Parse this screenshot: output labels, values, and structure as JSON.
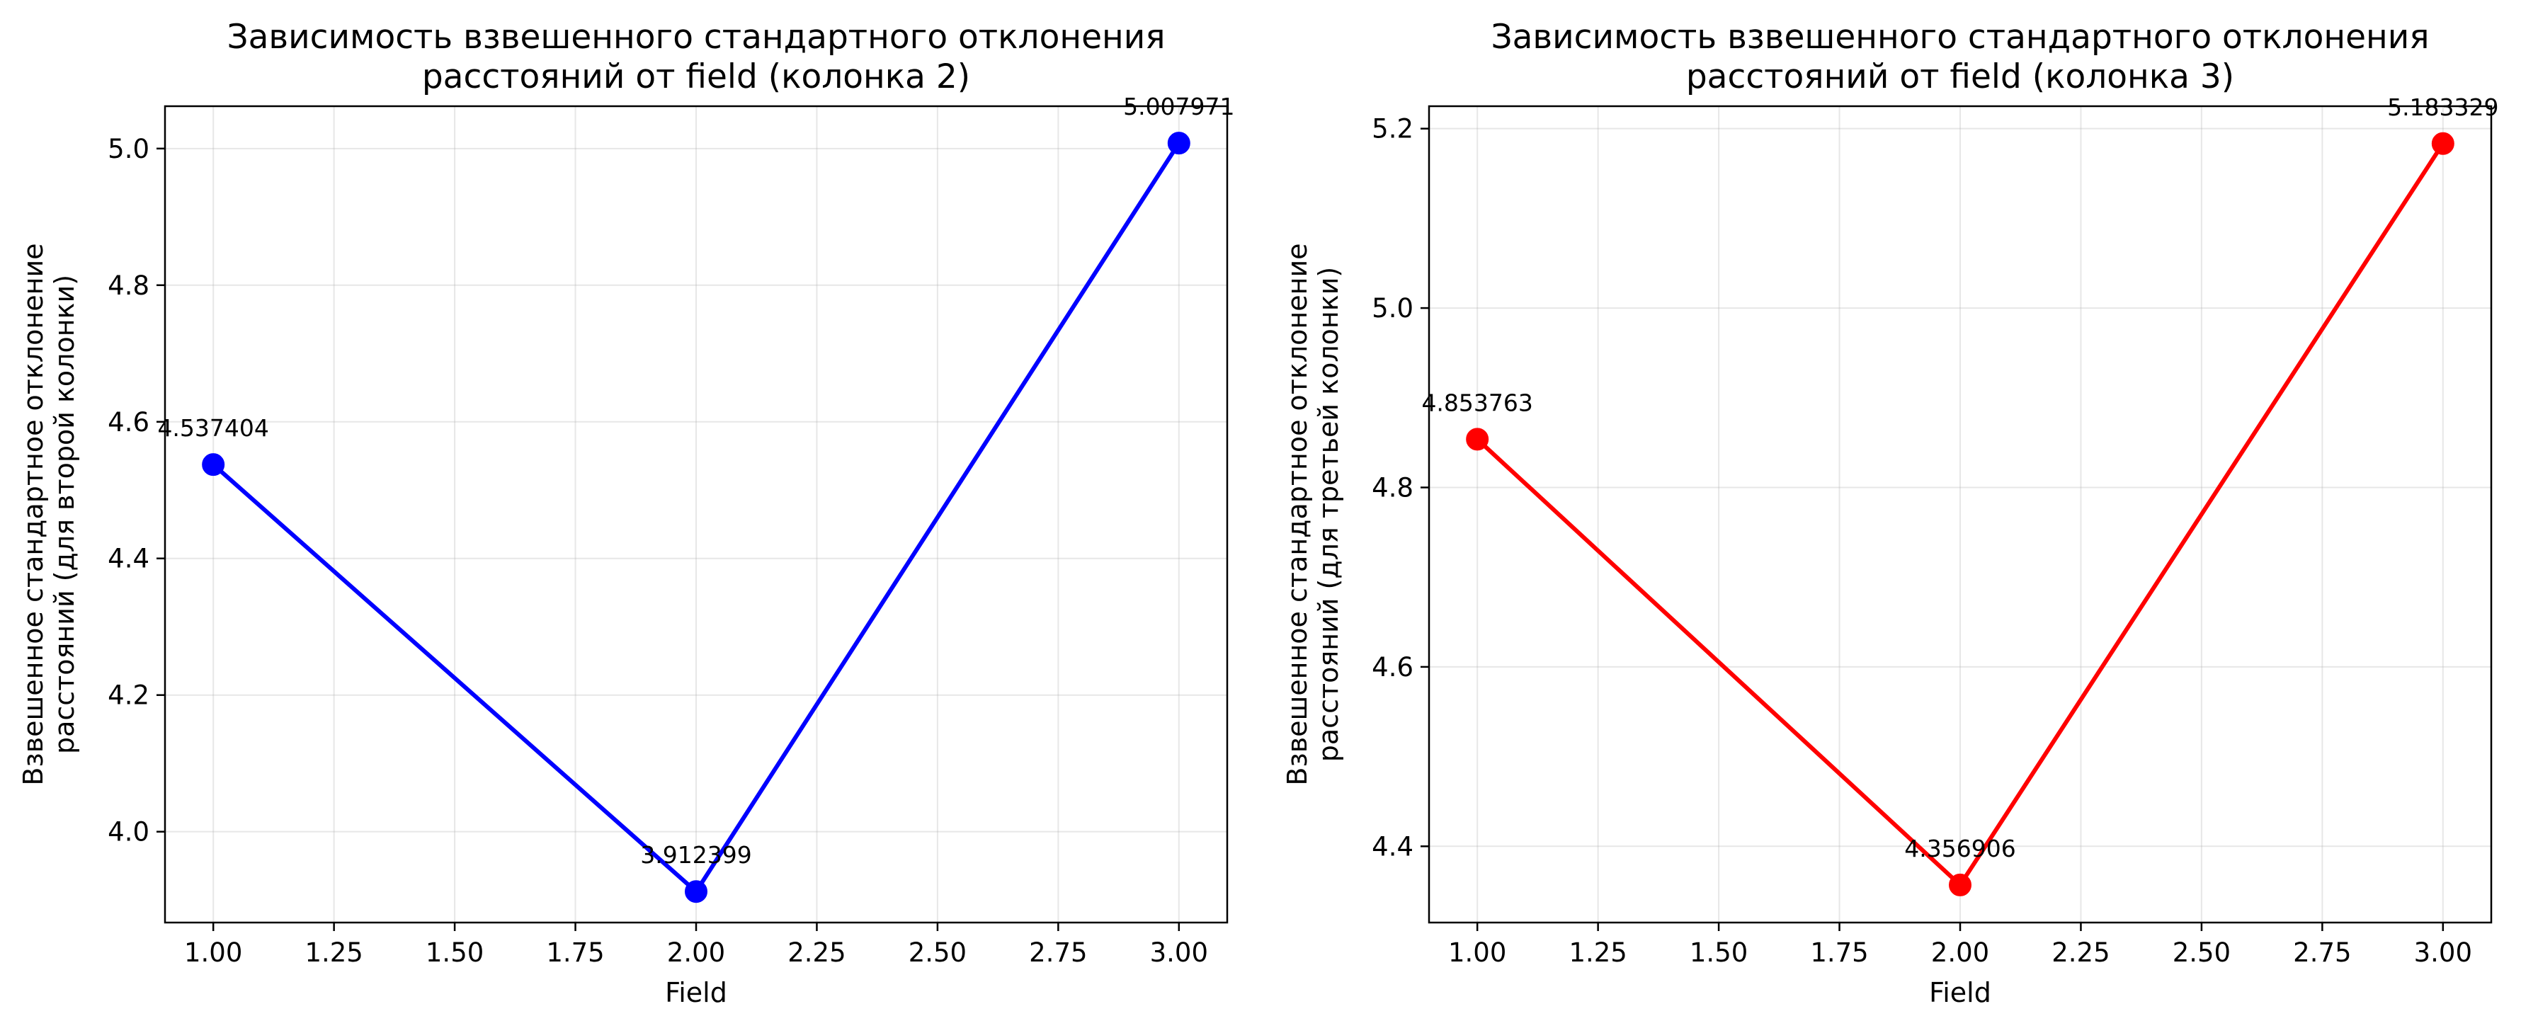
{
  "chart_data": [
    {
      "type": "line",
      "title": "Зависимость взвешенного стандартного отклонения\nрасстояний от field (колонка 2)",
      "xlabel": "Field",
      "ylabel": "Взвешенное стандартное отклонение\nрасстояний (для второй колонки)",
      "xlim": [
        0.9,
        3.1
      ],
      "ylim": [
        3.867,
        5.062
      ],
      "xticks": [
        1.0,
        1.25,
        1.5,
        1.75,
        2.0,
        2.25,
        2.5,
        2.75,
        3.0
      ],
      "xtick_labels": [
        "1.00",
        "1.25",
        "1.50",
        "1.75",
        "2.00",
        "2.25",
        "2.50",
        "2.75",
        "3.00"
      ],
      "yticks": [
        4.0,
        4.2,
        4.4,
        4.6,
        4.8,
        5.0
      ],
      "ytick_labels": [
        "4.0",
        "4.2",
        "4.4",
        "4.6",
        "4.8",
        "5.0"
      ],
      "grid": true,
      "color": "#0000ff",
      "x": [
        1,
        2,
        3
      ],
      "y": [
        4.537404,
        3.912399,
        5.007971
      ],
      "data_labels": [
        "4.537404",
        "3.912399",
        "5.007971"
      ]
    },
    {
      "type": "line",
      "title": "Зависимость взвешенного стандартного отклонения\nрасстояний от field (колонка 3)",
      "xlabel": "Field",
      "ylabel": "Взвешенное стандартное отклонение\nрасстояний (для третьей колонки)",
      "xlim": [
        0.9,
        3.1
      ],
      "ylim": [
        4.315,
        5.225
      ],
      "xticks": [
        1.0,
        1.25,
        1.5,
        1.75,
        2.0,
        2.25,
        2.5,
        2.75,
        3.0
      ],
      "xtick_labels": [
        "1.00",
        "1.25",
        "1.50",
        "1.75",
        "2.00",
        "2.25",
        "2.50",
        "2.75",
        "3.00"
      ],
      "yticks": [
        4.4,
        4.6,
        4.8,
        5.0,
        5.2
      ],
      "ytick_labels": [
        "4.4",
        "4.6",
        "4.8",
        "5.0",
        "5.2"
      ],
      "grid": true,
      "color": "#ff0000",
      "x": [
        1,
        2,
        3
      ],
      "y": [
        4.853763,
        4.356906,
        5.183329
      ],
      "data_labels": [
        "4.853763",
        "4.356906",
        "5.183329"
      ]
    }
  ]
}
